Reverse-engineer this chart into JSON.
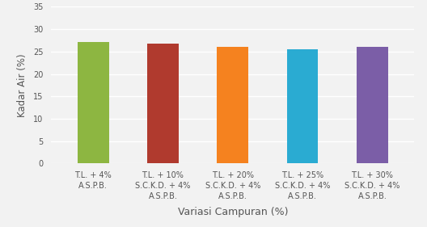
{
  "categories": [
    "T.L. + 4%\nA.S.P.B.",
    "T.L. + 10%\nS.C.K.D. + 4%\nA.S.P.B.",
    "T.L. + 20%\nS.C.K.D. + 4%\nA.S.P.B.",
    "T.L. + 25%\nS.C.K.D. + 4%\nA.S.P.B.",
    "T.L. + 30%\nS.C.K.D. + 4%\nA.S.P.B."
  ],
  "values": [
    27.2,
    26.8,
    26.1,
    25.6,
    26.0
  ],
  "bar_colors": [
    "#8DB641",
    "#B03A2E",
    "#F5821F",
    "#2AABD2",
    "#7B5EA7"
  ],
  "ylabel": "Kadar Air (%)",
  "xlabel": "Variasi Campuran (%)",
  "ylim": [
    0,
    35
  ],
  "yticks": [
    0,
    5,
    10,
    15,
    20,
    25,
    30,
    35
  ],
  "bar_width": 0.45,
  "background_color": "#f2f2f2",
  "grid_color": "#ffffff",
  "tick_fontsize": 7,
  "label_fontsize": 8.5,
  "xlabel_fontsize": 9
}
